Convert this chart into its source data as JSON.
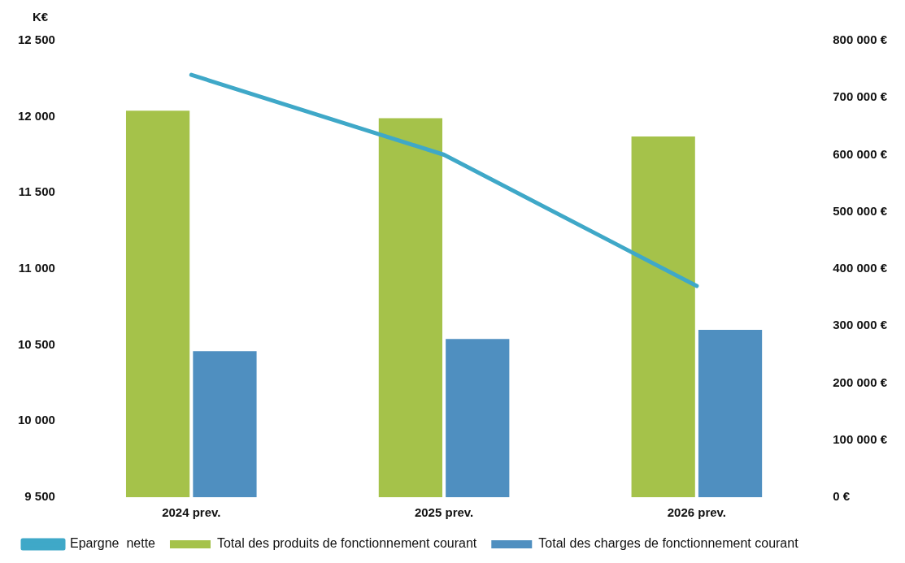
{
  "chart_data": {
    "type": "bar",
    "ylabel": "K€",
    "categories": [
      "2024 prev.",
      "2025 prev.",
      "2026 prev."
    ],
    "series": [
      {
        "name": "Total des produits de fonctionnement courant",
        "color": "#a5c24a",
        "values": [
          12040,
          11990,
          11870
        ]
      },
      {
        "name": "Total des charges de fonctionnement courant",
        "color": "#4f8fc0",
        "values": [
          10460,
          10540,
          10600
        ]
      },
      {
        "name": "Epargne  nette",
        "type": "line",
        "axis": "y2",
        "color": "#3fa8c8",
        "values": [
          740000,
          600000,
          370000
        ]
      }
    ],
    "ylim": [
      9500,
      12500
    ],
    "yticks": [
      {
        "value": 9500,
        "label": "9 500"
      },
      {
        "value": 10000,
        "label": "10 000"
      },
      {
        "value": 10500,
        "label": "10 500"
      },
      {
        "value": 11000,
        "label": "11 000"
      },
      {
        "value": 11500,
        "label": "11 500"
      },
      {
        "value": 12000,
        "label": "12 000"
      },
      {
        "value": 12500,
        "label": "12 500"
      }
    ],
    "y2lim": [
      0,
      800000
    ],
    "y2ticks": [
      {
        "value": 0,
        "label": "0 €"
      },
      {
        "value": 100000,
        "label": "100 000 €"
      },
      {
        "value": 200000,
        "label": "200 000 €"
      },
      {
        "value": 300000,
        "label": "300 000 €"
      },
      {
        "value": 400000,
        "label": "400 000 €"
      },
      {
        "value": 500000,
        "label": "500 000 €"
      },
      {
        "value": 600000,
        "label": "600 000 €"
      },
      {
        "value": 700000,
        "label": "700 000 €"
      },
      {
        "value": 800000,
        "label": "800 000 €"
      }
    ],
    "grid": false,
    "legend": "bottom",
    "marker": "none"
  }
}
